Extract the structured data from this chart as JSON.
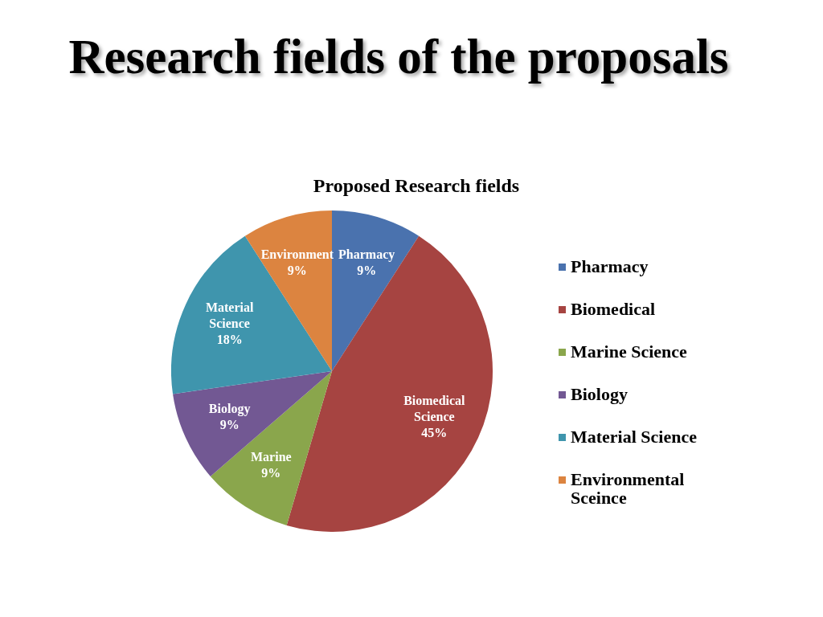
{
  "chart_data": {
    "type": "pie",
    "title": "Research fields of the proposals",
    "subtitle": "Proposed Research fields",
    "categories": [
      "Pharmacy",
      "Biomedical",
      "Marine Science",
      "Biology",
      "Material Science",
      "Environmental Sceince"
    ],
    "values": [
      9,
      45,
      9,
      9,
      18,
      9
    ],
    "colors": [
      "#4a72ae",
      "#a64441",
      "#8aa64c",
      "#725893",
      "#3f95ad",
      "#dc8440"
    ],
    "value_labels": [
      "Pharmacy\n9%",
      "Biomedical\nScience\n45%",
      "Marine\n9%",
      "Biology\n9%",
      "Material\nScience\n18%",
      "Environment\n9%"
    ],
    "legend": "right"
  }
}
